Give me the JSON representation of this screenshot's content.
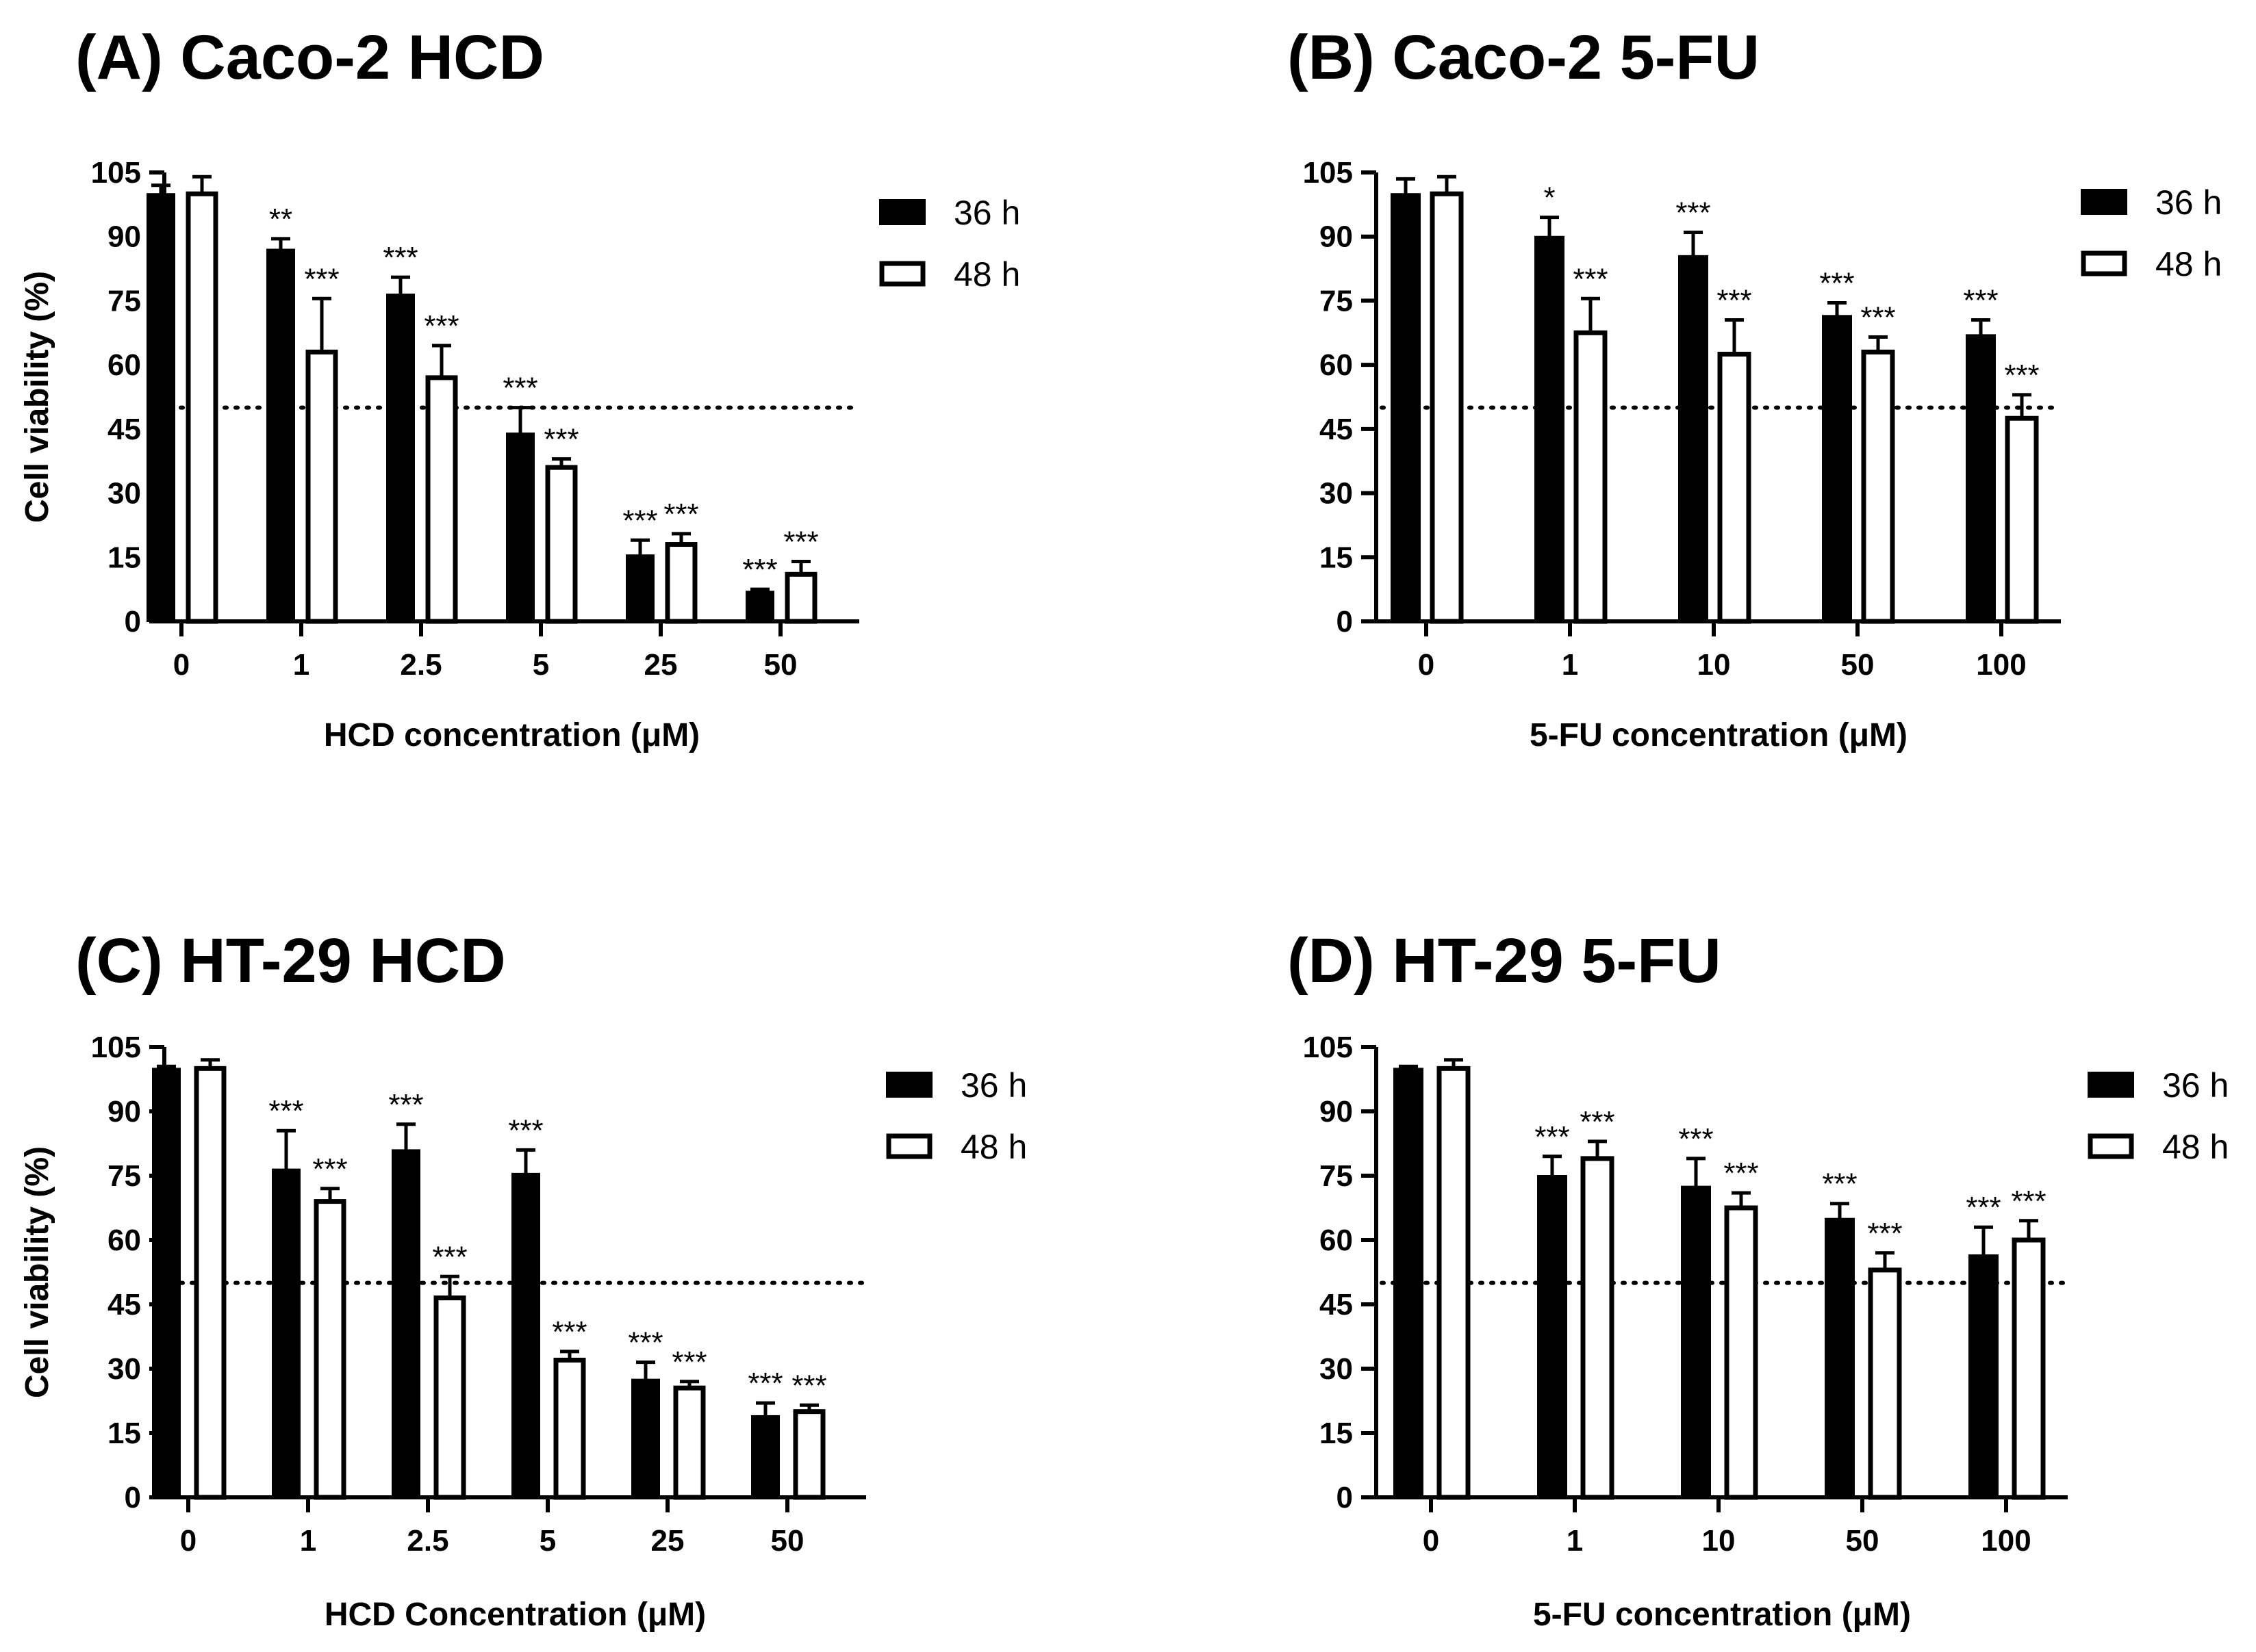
{
  "chart_data": [
    {
      "type": "bar",
      "title": "(A) Caco-2 HCD",
      "xlabel": "HCD concentration (μM)",
      "ylabel": "Cell viability (%)",
      "ylim": [
        0,
        105
      ],
      "yticks": [
        0,
        15,
        30,
        45,
        60,
        75,
        90,
        105
      ],
      "reference_line": 50,
      "categories": [
        "0",
        "1",
        "2.5",
        "5",
        "25",
        "50"
      ],
      "series": [
        {
          "name": "36 h",
          "fill": "#000000",
          "values": [
            100,
            87,
            76.5,
            44,
            15.5,
            7
          ],
          "errors": [
            2,
            2.5,
            4,
            6,
            3.5,
            0.5
          ],
          "significance": [
            "",
            "**",
            "***",
            "***",
            "***",
            "***"
          ]
        },
        {
          "name": "48 h",
          "fill": "#ffffff",
          "values": [
            100,
            63,
            57,
            36,
            18,
            11
          ],
          "errors": [
            4,
            12.5,
            7.5,
            2,
            2.5,
            3
          ],
          "significance": [
            "",
            "***",
            "***",
            "***",
            "***",
            "***"
          ]
        }
      ]
    },
    {
      "type": "bar",
      "title": "(B) Caco-2 5-FU",
      "xlabel": "5-FU concentration (μM)",
      "ylabel": "Cell viability (%)",
      "ylim": [
        0,
        105
      ],
      "yticks": [
        0,
        15,
        30,
        45,
        60,
        75,
        90,
        105
      ],
      "reference_line": 50,
      "categories": [
        "0",
        "1",
        "10",
        "50",
        "100"
      ],
      "series": [
        {
          "name": "36 h",
          "fill": "#000000",
          "values": [
            100,
            90,
            85.5,
            71.5,
            67
          ],
          "errors": [
            3.5,
            4.5,
            5.5,
            3,
            3.5
          ],
          "significance": [
            "",
            "*",
            "***",
            "***",
            "***"
          ]
        },
        {
          "name": "48 h",
          "fill": "#ffffff",
          "values": [
            100,
            67.5,
            62.5,
            63,
            47.5
          ],
          "errors": [
            4,
            8,
            8,
            3.5,
            5.5
          ],
          "significance": [
            "",
            "***",
            "***",
            "***",
            "***"
          ]
        }
      ]
    },
    {
      "type": "bar",
      "title": "(C) HT-29 HCD",
      "xlabel": "HCD Concentration (μM)",
      "ylabel": "Cell viability (%)",
      "ylim": [
        0,
        105
      ],
      "yticks": [
        0,
        15,
        30,
        45,
        60,
        75,
        90,
        105
      ],
      "reference_line": 50,
      "categories": [
        "0",
        "1",
        "2.5",
        "5",
        "25",
        "50"
      ],
      "series": [
        {
          "name": "36 h",
          "fill": "#000000",
          "values": [
            100,
            76.5,
            81,
            75.5,
            27.5,
            19
          ],
          "errors": [
            0.5,
            9,
            6,
            5.5,
            4,
            3
          ],
          "significance": [
            "",
            "***",
            "***",
            "***",
            "***",
            "***"
          ]
        },
        {
          "name": "48 h",
          "fill": "#ffffff",
          "values": [
            100,
            69,
            46.5,
            32,
            25.5,
            20
          ],
          "errors": [
            2,
            3,
            5,
            2,
            1.5,
            1.5
          ],
          "significance": [
            "",
            "***",
            "***",
            "***",
            "***",
            "***"
          ]
        }
      ]
    },
    {
      "type": "bar",
      "title": "(D) HT-29 5-FU",
      "xlabel": "5-FU concentration (μM)",
      "ylabel": "Cell viability (%)",
      "ylim": [
        0,
        105
      ],
      "yticks": [
        0,
        15,
        30,
        45,
        60,
        75,
        90,
        105
      ],
      "reference_line": 50,
      "categories": [
        "0",
        "1",
        "10",
        "50",
        "100"
      ],
      "series": [
        {
          "name": "36 h",
          "fill": "#000000",
          "values": [
            100,
            75,
            72.5,
            65,
            56.5
          ],
          "errors": [
            0.5,
            4.5,
            6.5,
            3.5,
            6.5
          ],
          "significance": [
            "",
            "***",
            "***",
            "***",
            "***"
          ]
        },
        {
          "name": "48 h",
          "fill": "#ffffff",
          "values": [
            100,
            79,
            67.5,
            53,
            60
          ],
          "errors": [
            2,
            4,
            3.5,
            4,
            4.5
          ],
          "significance": [
            "",
            "***",
            "***",
            "***",
            "***"
          ]
        }
      ]
    }
  ]
}
